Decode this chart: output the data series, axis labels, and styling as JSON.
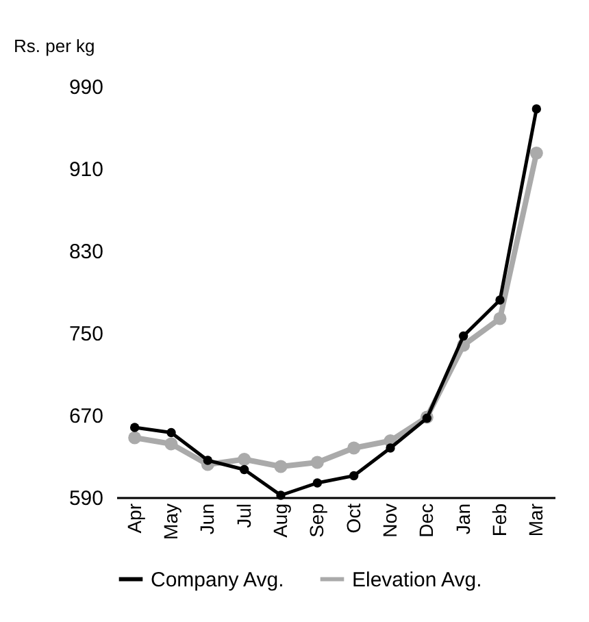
{
  "chart_data": {
    "type": "line",
    "ylabel": "Rs. per kg",
    "categories": [
      "Apr",
      "May",
      "Jun",
      "Jul",
      "Aug",
      "Sep",
      "Oct",
      "Nov",
      "Dec",
      "Jan",
      "Feb",
      "Mar"
    ],
    "series": [
      {
        "name": "Elevation Avg.",
        "color": "#aaaaaa",
        "values": [
          648,
          642,
          622,
          627,
          620,
          624,
          638,
          645,
          668,
          738,
          764,
          925
        ]
      },
      {
        "name": "Company Avg.",
        "color": "#000000",
        "values": [
          658,
          653,
          626,
          617,
          592,
          604,
          611,
          638,
          667,
          747,
          782,
          968
        ]
      }
    ],
    "ylim": [
      590,
      990
    ],
    "yticks": [
      590,
      670,
      750,
      830,
      910,
      990
    ],
    "grid": false,
    "legend": "bottom",
    "marker": "circle",
    "line_style": "solid"
  }
}
